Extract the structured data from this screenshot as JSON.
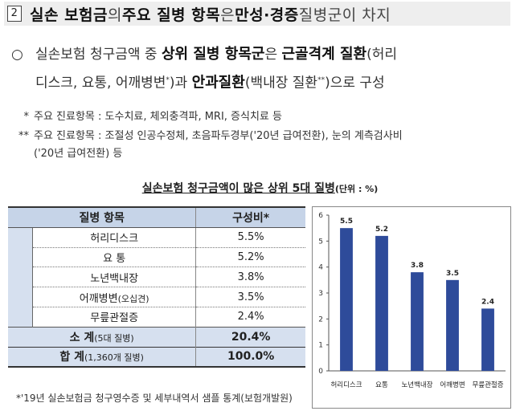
{
  "heading": {
    "number": "2",
    "parts": [
      {
        "text": "실손 보험금",
        "style": "b"
      },
      {
        "text": "의 ",
        "style": "l"
      },
      {
        "text": "주요 질병 항목",
        "style": "b"
      },
      {
        "text": "은 ",
        "style": "l"
      },
      {
        "text": "만성·경증",
        "style": "b"
      },
      {
        "text": " 질병군이 차지",
        "style": "l"
      }
    ]
  },
  "para": {
    "bullet": "○",
    "t1": "실손보험 청구금액 중 ",
    "t2": "상위 질병 항목군",
    "t3": "은 ",
    "t4": "근골격계 질환",
    "t5": "(허리",
    "t6": "디스크, 요통, 어깨병변",
    "t6sup": "*",
    "t7": ")과 ",
    "t8": "안과질환",
    "t9": "(백내장 질환",
    "t9sup": "**",
    "t10": ")으로 구성"
  },
  "notes": [
    {
      "marker": "*",
      "text": "주요 진료항목 : 도수치료, 체외충격파, MRI, 증식치료 등"
    },
    {
      "marker": "**",
      "text": "주요 진료항목 : 조절성 인공수정체, 초음파두경부('20년 급여전환), 눈의 계측검사비"
    },
    {
      "marker": "",
      "text": "('20년 급여전환) 등"
    }
  ],
  "chart_title": {
    "main": "실손보험 청구금액이 많은 상위 5대 질병",
    "unit": "(단위 : %)"
  },
  "table": {
    "headers": [
      "질병 항목",
      "구성비*"
    ],
    "rows": [
      {
        "name": "허리디스크",
        "note": "",
        "value": "5.5%"
      },
      {
        "name": "요 통",
        "note": "",
        "value": "5.2%"
      },
      {
        "name": "노년백내장",
        "note": "",
        "value": "3.8%"
      },
      {
        "name": "어깨병변",
        "note": "(오십견)",
        "value": "3.5%"
      },
      {
        "name": "무릎관절증",
        "note": "",
        "value": "2.4%"
      }
    ],
    "subtotal": {
      "label": "소 계",
      "note": "(5대 질병)",
      "value": "20.4%"
    },
    "total": {
      "label": "합 계",
      "note": "(1,360개 질병)",
      "value": "100.0%"
    }
  },
  "source": "*'19년 실손보험금 청구영수증 및 세부내역서 샘플 통계(보험개발원)",
  "chart_data": {
    "type": "bar",
    "categories": [
      "허리디스크",
      "요통",
      "노년백내장",
      "어깨병변",
      "무릎관절증"
    ],
    "values": [
      5.5,
      5.2,
      3.8,
      3.5,
      2.4
    ],
    "ylim": [
      0,
      6
    ],
    "yticks": [
      0,
      1,
      2,
      3,
      4,
      5,
      6
    ],
    "grid": false,
    "legend": "none",
    "bar_color": "#2e4b9a"
  }
}
